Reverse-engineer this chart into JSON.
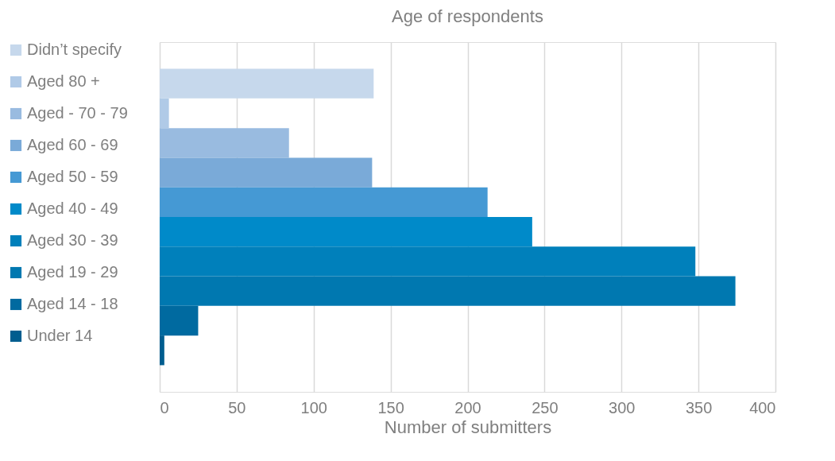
{
  "chart_data": {
    "type": "bar",
    "orientation": "horizontal",
    "title": "Age of respondents",
    "xlabel": "Number of submitters",
    "categories": [
      null
    ],
    "series": [
      {
        "name": "Didn’t specify",
        "color": "#c6d8ec",
        "values": [
          139
        ]
      },
      {
        "name": "Aged 80 +",
        "color": "#b0cae7",
        "values": [
          6
        ]
      },
      {
        "name": "Aged - 70 - 79",
        "color": "#99bbe0",
        "values": [
          84
        ]
      },
      {
        "name": "Aged 60 - 69",
        "color": "#7aaad8",
        "values": [
          138
        ]
      },
      {
        "name": "Aged 50 - 59",
        "color": "#4599d4",
        "values": [
          213
        ]
      },
      {
        "name": "Aged 40 - 49",
        "color": "#008ac9",
        "values": [
          242
        ]
      },
      {
        "name": "Aged 30 - 39",
        "color": "#0080bb",
        "values": [
          348
        ]
      },
      {
        "name": "Aged 19 - 29",
        "color": "#0078b0",
        "values": [
          374
        ]
      },
      {
        "name": "Aged 14 - 18",
        "color": "#006aa0",
        "values": [
          25
        ]
      },
      {
        "name": "Under 14",
        "color": "#005d8f",
        "values": [
          3
        ]
      }
    ],
    "xlim": [
      0,
      400
    ],
    "xticks": [
      0,
      50,
      100,
      150,
      200,
      250,
      300,
      350,
      400
    ],
    "grid": "x",
    "legend": "left"
  }
}
